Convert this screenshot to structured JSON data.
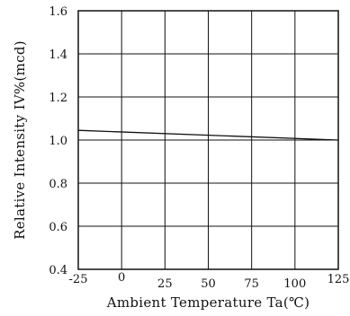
{
  "chart_data": {
    "type": "line",
    "title": "",
    "xlabel": "Ambient Temperature Ta(℃)",
    "ylabel": "Relative Intensity IV%(mcd)",
    "xlim": [
      -25,
      125
    ],
    "ylim": [
      0.4,
      1.6
    ],
    "x_ticks": [
      -25,
      0,
      25,
      50,
      75,
      100,
      125
    ],
    "y_ticks": [
      "0.4",
      "0.6",
      "0.8",
      "1.0",
      "1.2",
      "1.4",
      "1.6"
    ],
    "grid": true,
    "legend": "none",
    "series": [
      {
        "x": [
          -25,
          125
        ],
        "y": [
          1.045,
          1.0
        ]
      }
    ],
    "colors": {
      "line": "#111111",
      "grid": "#111111"
    }
  }
}
